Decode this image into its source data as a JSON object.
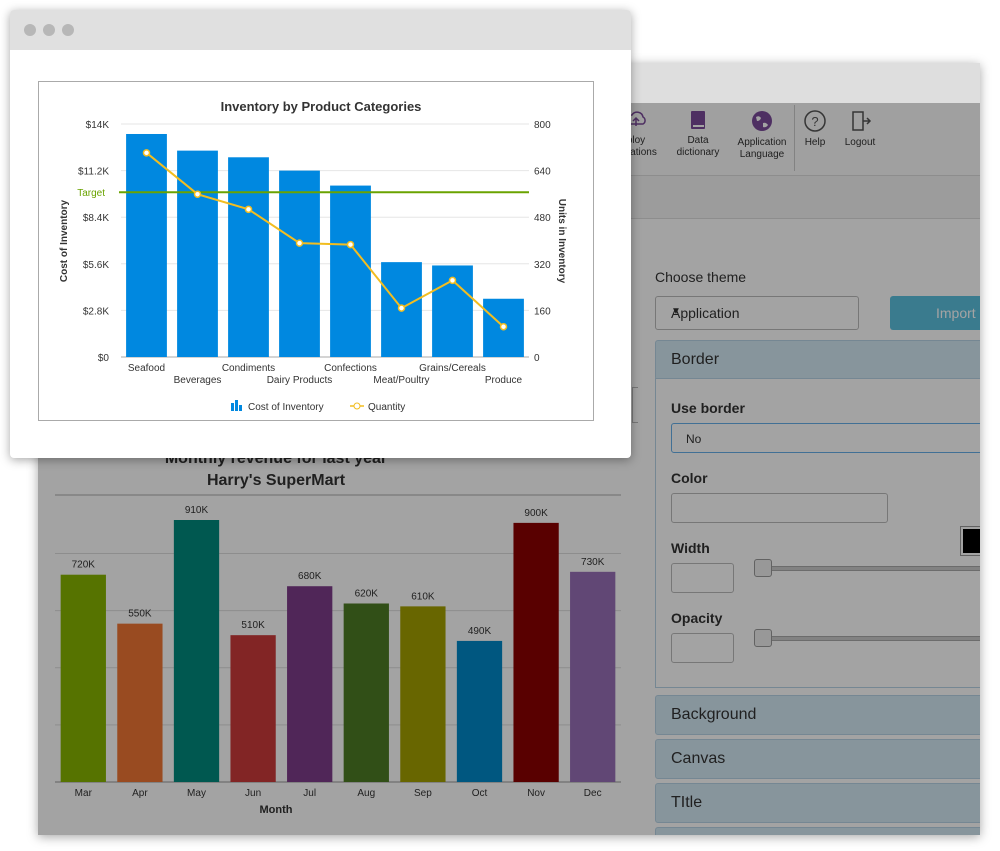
{
  "toolbar": {
    "items": [
      {
        "label1": "ploy",
        "label2": "plications",
        "icon": "deploy-icon"
      },
      {
        "label1": "Data",
        "label2": "dictionary",
        "icon": "book-icon"
      },
      {
        "label1": "Application",
        "label2": "Language",
        "icon": "globe-icon"
      },
      {
        "label1": "Help",
        "label2": "",
        "icon": "help-icon"
      },
      {
        "label1": "Logout",
        "label2": "",
        "icon": "logout-icon"
      }
    ]
  },
  "theme": {
    "label": "Choose theme",
    "selected": "Application",
    "import_label": "Import"
  },
  "accordion": {
    "border": "Border",
    "background": "Background",
    "canvas": "Canvas",
    "title": "TItle"
  },
  "border_form": {
    "use_border_label": "Use border",
    "use_border_value": "No",
    "color_label": "Color",
    "width_label": "Width",
    "opacity_label": "Opacity",
    "swatch_color": "#000000"
  },
  "chart_data": [
    {
      "type": "bar",
      "title": "Inventory by Product Categories",
      "categories": [
        "Seafood",
        "Beverages",
        "Condiments",
        "Dairy Products",
        "Confections",
        "Meat/Poultry",
        "Grains/Cereals",
        "Produce"
      ],
      "series": [
        {
          "name": "Cost of Inventory",
          "type": "bar",
          "axis": "left",
          "values": [
            13400,
            12400,
            12000,
            11200,
            10300,
            5700,
            5500,
            3500
          ],
          "color": "#0088e0"
        },
        {
          "name": "Quantity",
          "type": "line",
          "axis": "right",
          "values": [
            701,
            559,
            507,
            391,
            386,
            168,
            263,
            104
          ],
          "color": "#f2bd20"
        }
      ],
      "target": {
        "label": "Target",
        "value": 9900,
        "color": "#6aa300"
      },
      "ylabel": "Cost of Inventory",
      "y2label": "Units in Inventory",
      "ylim": [
        0,
        14000
      ],
      "y2lim": [
        0,
        800
      ],
      "yticks": [
        "$0",
        "$2.8K",
        "$5.6K",
        "$8.4K",
        "$11.2K",
        "$14K"
      ],
      "y2ticks": [
        "0",
        "160",
        "320",
        "480",
        "640",
        "800"
      ],
      "legend": [
        "Cost of Inventory",
        "Quantity"
      ],
      "legend_position": "bottom"
    },
    {
      "type": "bar",
      "title": "Monthly revenue for last year",
      "subtitle": "Harry's SuperMart",
      "xlabel": "Month",
      "categories": [
        "Mar",
        "Apr",
        "May",
        "Jun",
        "Jul",
        "Aug",
        "Sep",
        "Oct",
        "Nov",
        "Dec"
      ],
      "values": [
        720,
        550,
        910,
        510,
        680,
        620,
        610,
        490,
        900,
        730
      ],
      "data_labels": [
        "720K",
        "550K",
        "910K",
        "510K",
        "680K",
        "620K",
        "610K",
        "490K",
        "900K",
        "730K"
      ],
      "colors": [
        "#87b500",
        "#f07634",
        "#008a7d",
        "#cb3b3b",
        "#7e3c8a",
        "#4e7c25",
        "#a3a000",
        "#0088c8",
        "#8b0000",
        "#9870b8"
      ],
      "ylim": [
        0,
        910
      ]
    }
  ]
}
